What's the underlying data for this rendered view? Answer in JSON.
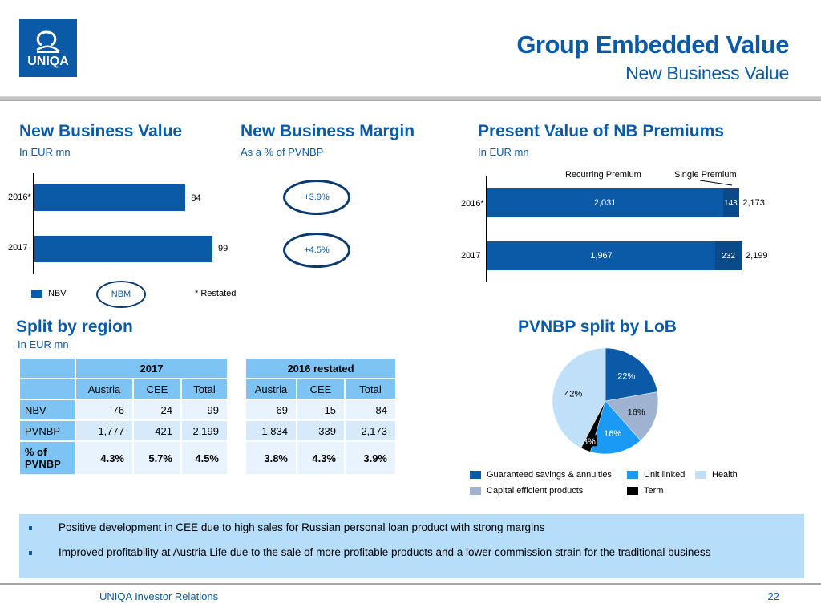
{
  "header": {
    "logo_text": "UNIQA",
    "title": "Group Embedded Value",
    "subtitle": "New Business Value"
  },
  "nbv_section": {
    "title": "New Business Value",
    "subtitle": "In EUR mn",
    "legend_nbv": "NBV",
    "legend_nbm": "NBM",
    "footnote": "*  Restated",
    "restated_marker": "*"
  },
  "nbm_section": {
    "title": "New Business Margin",
    "subtitle": "As a % of PVNBP",
    "values": [
      "+3.9%",
      "+4.5%"
    ]
  },
  "pvnbp_section": {
    "title": "Present Value of NB Premiums",
    "subtitle": "In EUR mn",
    "legend_recurring": "Recurring Premium",
    "legend_single": "Single Premium"
  },
  "region_section": {
    "title": "Split by region",
    "subtitle": "In EUR mn",
    "tables": [
      {
        "year": "2017",
        "columns": [
          "Austria",
          "CEE",
          "Total"
        ],
        "rows": [
          {
            "label": "NBV",
            "values": [
              "76",
              "24",
              "99"
            ]
          },
          {
            "label": "PVNBP",
            "values": [
              "1,777",
              "421",
              "2,199"
            ]
          },
          {
            "label": "% of PVNBP",
            "values": [
              "4.3%",
              "5.7%",
              "4.5%"
            ]
          }
        ]
      },
      {
        "year": "2016 restated",
        "columns": [
          "Austria",
          "CEE",
          "Total"
        ],
        "rows": [
          {
            "label": "NBV",
            "values": [
              "69",
              "15",
              "84"
            ]
          },
          {
            "label": "PVNBP",
            "values": [
              "1,834",
              "339",
              "2,173"
            ]
          },
          {
            "label": "% of PVNBP",
            "values": [
              "3.8%",
              "4.3%",
              "3.9%"
            ]
          }
        ]
      }
    ]
  },
  "lob_section": {
    "title": "PVNBP split by LoB"
  },
  "chart_data": [
    {
      "type": "bar",
      "orientation": "horizontal",
      "title": "New Business Value",
      "subtitle": "In EUR mn",
      "categories": [
        "2016*",
        "2017"
      ],
      "values": [
        84,
        99
      ],
      "value_labels": [
        "84",
        "99"
      ],
      "legend": [
        "NBV"
      ],
      "color": "#0a5aa8"
    },
    {
      "type": "bar",
      "orientation": "horizontal",
      "stacked": true,
      "title": "Present Value of NB Premiums",
      "subtitle": "In EUR mn",
      "categories": [
        "2016*",
        "2017"
      ],
      "series": [
        {
          "name": "Recurring Premium",
          "values": [
            2031,
            1967
          ],
          "labels": [
            "2,031",
            "1,967"
          ],
          "color": "#0a5aa8"
        },
        {
          "name": "Single Premium",
          "values": [
            143,
            232
          ],
          "labels": [
            "143",
            "232"
          ],
          "color": "#0a4a8a"
        }
      ],
      "totals": [
        "2,173",
        "2,199"
      ],
      "total_values": [
        2173,
        2199
      ]
    },
    {
      "type": "pie",
      "title": "PVNBP split by LoB",
      "slices": [
        {
          "name": "Guaranteed savings & annuities",
          "value": 22,
          "label": "22%",
          "color": "#0a5aa8",
          "label_color": "#ffffff"
        },
        {
          "name": "Capital efficient products",
          "value": 16,
          "label": "16%",
          "color": "#9fb3d0",
          "label_color": "#000000"
        },
        {
          "name": "Unit linked",
          "value": 16,
          "label": "16%",
          "color": "#1a9af5",
          "label_color": "#ffffff"
        },
        {
          "name": "Term",
          "value": 3,
          "label": "3%",
          "color": "#000000",
          "label_color": "#ffffff"
        },
        {
          "name": "Health",
          "value": 42,
          "label": "42%",
          "color": "#bfe0f8",
          "label_color": "#000000"
        }
      ],
      "legend_order": [
        "Guaranteed savings & annuities",
        "Unit linked",
        "Health",
        "Capital efficient products",
        "Term"
      ],
      "legend_placement": "bottom"
    }
  ],
  "bullets": [
    "Positive development in CEE due to high sales for Russian personal loan product with strong margins",
    "Improved profitability at Austria Life due to the sale of more profitable products and a lower commission strain for the traditional business"
  ],
  "footer": {
    "text": "UNIQA Investor Relations",
    "page": "22"
  }
}
